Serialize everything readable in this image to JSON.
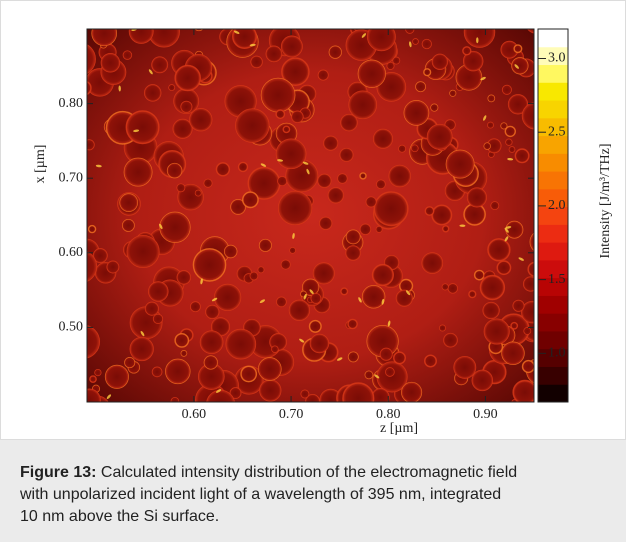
{
  "chart_data": {
    "type": "heatmap",
    "xlabel": "z [µm]",
    "ylabel": "x [µm]",
    "colorbar_label": "Intensity [J/m³/THz]",
    "xlim": [
      0.49,
      0.95
    ],
    "xticks": [
      {
        "value": 0.6,
        "label": "0.60"
      },
      {
        "value": 0.7,
        "label": "0.70"
      },
      {
        "value": 0.8,
        "label": "0.80"
      },
      {
        "value": 0.9,
        "label": "0.90"
      }
    ],
    "ylim": [
      0.4,
      0.9
    ],
    "yticks": [
      {
        "value": 0.5,
        "label": "0.50"
      },
      {
        "value": 0.6,
        "label": "0.60"
      },
      {
        "value": 0.7,
        "label": "0.70"
      },
      {
        "value": 0.8,
        "label": "0.80"
      }
    ],
    "clim": [
      0.67,
      3.2
    ],
    "cticks": [
      {
        "value": 1.0,
        "label": "1.0"
      },
      {
        "value": 1.5,
        "label": "1.5"
      },
      {
        "value": 2.0,
        "label": "2.0"
      },
      {
        "value": 2.5,
        "label": "2.5"
      },
      {
        "value": 3.0,
        "label": "3.0"
      }
    ],
    "colormap": [
      "#120000",
      "#380000",
      "#560000",
      "#700000",
      "#880000",
      "#a00000",
      "#b80404",
      "#cc0c0c",
      "#de1a10",
      "#ec2c12",
      "#f44410",
      "#f85c08",
      "#f87404",
      "#f88c00",
      "#f8a400",
      "#f8bc00",
      "#f8d400",
      "#f8e800",
      "#fff860",
      "#fffcb8",
      "#ffffff"
    ]
  },
  "caption": {
    "label": "Figure 13:",
    "lines": [
      "Calculated intensity distribution of the electromagnetic field",
      "with unpolarized incident light of a wavelength of 395 nm, integrated",
      "10 nm above the Si surface."
    ]
  }
}
